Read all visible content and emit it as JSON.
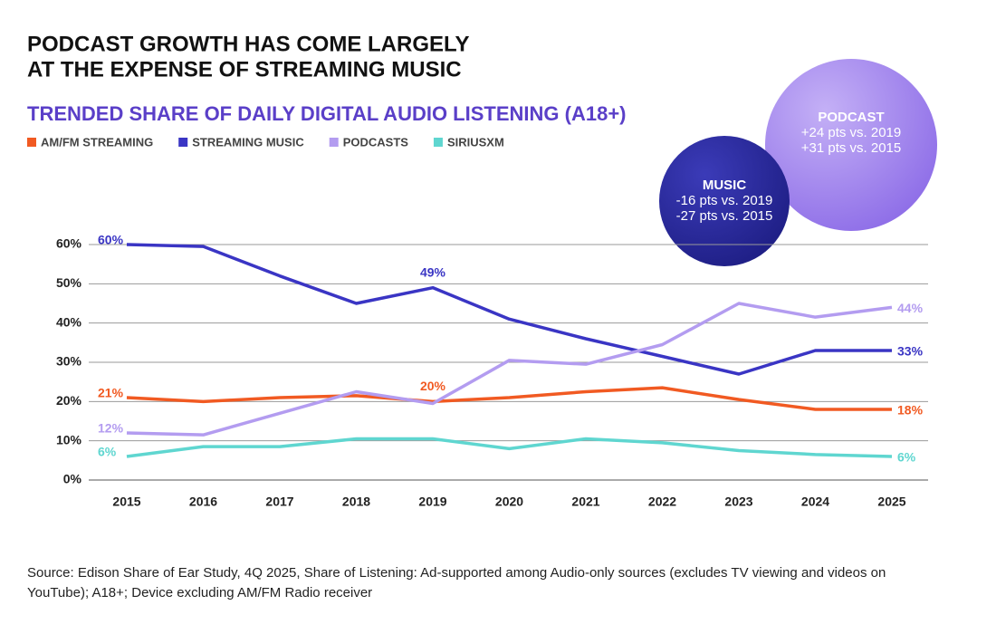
{
  "chart_data": {
    "type": "line",
    "title_lines": [
      "PODCAST GROWTH HAS COME LARGELY",
      "AT THE EXPENSE OF STREAMING MUSIC"
    ],
    "subtitle": "TRENDED SHARE OF DAILY DIGITAL AUDIO LISTENING (A18+)",
    "categories": [
      "2015",
      "2016",
      "2017",
      "2018",
      "2019",
      "2020",
      "2021",
      "2022",
      "2023",
      "2024",
      "2025"
    ],
    "series": [
      {
        "name": "AM/FM STREAMING",
        "color": "#f15a22",
        "values": [
          21,
          20,
          21,
          21.5,
          20,
          21,
          22.5,
          23.5,
          20.5,
          18,
          18
        ],
        "value_labels": [
          "21%",
          null,
          null,
          null,
          "20%",
          null,
          null,
          null,
          null,
          null,
          "18%"
        ]
      },
      {
        "name": "STREAMING MUSIC",
        "color": "#3a35c4",
        "values": [
          60,
          59.5,
          52,
          45,
          49,
          41,
          36,
          31.5,
          27,
          33,
          33
        ],
        "value_labels": [
          "60%",
          null,
          null,
          null,
          "49%",
          null,
          null,
          null,
          null,
          null,
          "33%"
        ]
      },
      {
        "name": "PODCASTS",
        "color": "#b39cf0",
        "values": [
          12,
          11.5,
          17,
          22.5,
          19.5,
          30.5,
          29.5,
          34.5,
          45,
          41.5,
          44
        ],
        "value_labels": [
          "12%",
          null,
          null,
          null,
          null,
          null,
          null,
          null,
          null,
          null,
          "44%"
        ]
      },
      {
        "name": "SIRIUSXM",
        "color": "#5fd6d0",
        "values": [
          6,
          8.5,
          8.5,
          10.5,
          10.5,
          8,
          10.5,
          9.5,
          7.5,
          6.5,
          6
        ],
        "value_labels": [
          "6%",
          null,
          null,
          null,
          null,
          null,
          null,
          null,
          null,
          null,
          "6%"
        ]
      }
    ],
    "ylim": [
      0,
      60
    ],
    "yticks": [
      {
        "value": 0,
        "label": "0%"
      },
      {
        "value": 10,
        "label": "10%"
      },
      {
        "value": 20,
        "label": "20%"
      },
      {
        "value": 30,
        "label": "30%"
      },
      {
        "value": 40,
        "label": "40%"
      },
      {
        "value": 50,
        "label": "50%"
      },
      {
        "value": 60,
        "label": "60%"
      }
    ],
    "grid": true,
    "annotations": [
      {
        "title": "PODCAST",
        "lines": [
          "+24 pts vs. 2019",
          "+31 pts vs. 2015"
        ]
      },
      {
        "title": "MUSIC",
        "lines": [
          "-16 pts vs. 2019",
          "-27 pts vs. 2015"
        ]
      }
    ],
    "source": "Source: Edison Share of Ear Study, 4Q 2025, Share of Listening: Ad-supported among Audio-only sources  (excludes TV viewing and videos on YouTube); A18+; Device excluding AM/FM Radio receiver"
  }
}
